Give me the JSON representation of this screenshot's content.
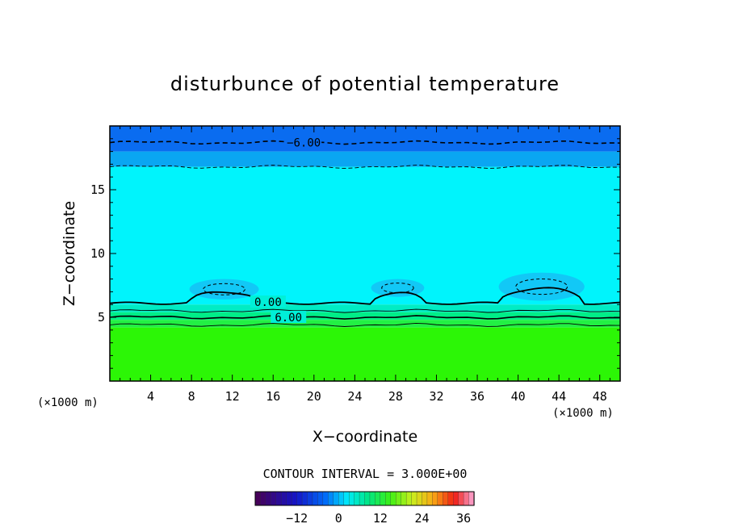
{
  "chart_data": {
    "type": "heatmap",
    "title": "disturbunce of potential temperature",
    "xlabel": "X−coordinate",
    "ylabel": "Z−coordinate",
    "x_unit_left": "(×1000 m)",
    "x_unit_right": "(×1000 m)",
    "xlim": [
      0,
      50
    ],
    "ylim": [
      0,
      20
    ],
    "x_ticks": [
      4,
      8,
      12,
      16,
      20,
      24,
      28,
      32,
      36,
      40,
      44,
      48
    ],
    "x_tick_labels": [
      "4",
      "8",
      "12",
      "16",
      "20",
      "24",
      "28",
      "32",
      "36",
      "40",
      "44",
      "48"
    ],
    "y_ticks": [
      5,
      10,
      15
    ],
    "y_tick_labels": [
      "5",
      "10",
      "15"
    ],
    "contour_labels": [
      {
        "text": "−6.00",
        "x": 19,
        "y": 18.7
      },
      {
        "text": "0.00",
        "x": 15.5,
        "y": 6.2
      },
      {
        "text": "6.00",
        "x": 17.5,
        "y": 5.0
      }
    ],
    "contour_interval_text": "CONTOUR INTERVAL = 3.000E+00",
    "colorbar": {
      "min": -24,
      "max": 39,
      "ticks": [
        -12,
        0,
        12,
        24,
        36
      ],
      "tick_labels": [
        "−12",
        "0",
        "12",
        "24",
        "36"
      ]
    },
    "bands": [
      {
        "z0": 18.0,
        "z1": 20.0,
        "color": "#0a6cf0"
      },
      {
        "z0": 16.8,
        "z1": 18.0,
        "color": "#0aa6f2"
      },
      {
        "z0": 6.0,
        "z1": 16.8,
        "color": "#00f4fc"
      },
      {
        "z0": 5.4,
        "z1": 6.0,
        "color": "#00ecc4"
      },
      {
        "z0": 4.8,
        "z1": 5.4,
        "color": "#00ee88"
      },
      {
        "z0": 4.2,
        "z1": 4.8,
        "color": "#22f044"
      },
      {
        "z0": 0.0,
        "z1": 4.2,
        "color": "#2cf606"
      }
    ],
    "cold_blobs": [
      {
        "x": 11.2,
        "z": 7.2,
        "rx": 3.4,
        "rz": 0.8
      },
      {
        "x": 28.2,
        "z": 7.3,
        "rx": 2.6,
        "rz": 0.7
      },
      {
        "x": 42.3,
        "z": 7.4,
        "rx": 4.2,
        "rz": 1.1
      }
    ]
  },
  "colors": {
    "frame": "#000000",
    "background": "#ffffff"
  }
}
